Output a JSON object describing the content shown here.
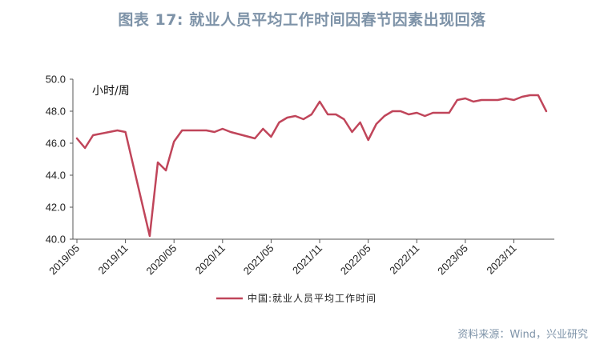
{
  "title": "图表 17: 就业人员平均工作时间因春节因素出现回落",
  "source": "资料来源：Wind，兴业研究",
  "chart_data": {
    "type": "line",
    "unit_label": "小时/周",
    "ylim": [
      40.0,
      50.0
    ],
    "yticks": [
      "40.0",
      "42.0",
      "44.0",
      "46.0",
      "48.0",
      "50.0"
    ],
    "xticks": [
      "2019/05",
      "2019/11",
      "2020/05",
      "2020/11",
      "2021/05",
      "2021/11",
      "2022/05",
      "2022/11",
      "2023/05",
      "2023/11"
    ],
    "legend": "中国:就业人员平均工作时间",
    "color": "#C0455A",
    "series": [
      {
        "name": "中国:就业人员平均工作时间",
        "points": [
          [
            "2019-05",
            46.3
          ],
          [
            "2019-06",
            45.7
          ],
          [
            "2019-07",
            46.5
          ],
          [
            "2019-08",
            46.6
          ],
          [
            "2019-09",
            46.7
          ],
          [
            "2019-10",
            46.8
          ],
          [
            "2019-11",
            46.7
          ],
          [
            "2020-02",
            40.2
          ],
          [
            "2020-03",
            44.8
          ],
          [
            "2020-04",
            44.3
          ],
          [
            "2020-05",
            46.1
          ],
          [
            "2020-06",
            46.8
          ],
          [
            "2020-07",
            46.8
          ],
          [
            "2020-08",
            46.8
          ],
          [
            "2020-09",
            46.8
          ],
          [
            "2020-10",
            46.7
          ],
          [
            "2020-11",
            46.9
          ],
          [
            "2020-12",
            46.7
          ],
          [
            "2021-03",
            46.3
          ],
          [
            "2021-04",
            46.9
          ],
          [
            "2021-05",
            46.4
          ],
          [
            "2021-06",
            47.3
          ],
          [
            "2021-07",
            47.6
          ],
          [
            "2021-08",
            47.7
          ],
          [
            "2021-09",
            47.5
          ],
          [
            "2021-10",
            47.8
          ],
          [
            "2021-11",
            48.6
          ],
          [
            "2021-12",
            47.8
          ],
          [
            "2022-01",
            47.8
          ],
          [
            "2022-02",
            47.5
          ],
          [
            "2022-03",
            46.7
          ],
          [
            "2022-04",
            47.3
          ],
          [
            "2022-05",
            46.2
          ],
          [
            "2022-06",
            47.2
          ],
          [
            "2022-07",
            47.7
          ],
          [
            "2022-08",
            48.0
          ],
          [
            "2022-09",
            48.0
          ],
          [
            "2022-10",
            47.8
          ],
          [
            "2022-11",
            47.9
          ],
          [
            "2022-12",
            47.7
          ],
          [
            "2023-01",
            47.9
          ],
          [
            "2023-02",
            47.9
          ],
          [
            "2023-03",
            47.9
          ],
          [
            "2023-04",
            48.7
          ],
          [
            "2023-05",
            48.8
          ],
          [
            "2023-06",
            48.6
          ],
          [
            "2023-07",
            48.7
          ],
          [
            "2023-08",
            48.7
          ],
          [
            "2023-09",
            48.7
          ],
          [
            "2023-10",
            48.8
          ],
          [
            "2023-11",
            48.7
          ],
          [
            "2023-12",
            48.9
          ],
          [
            "2024-01",
            49.0
          ],
          [
            "2024-02",
            49.0
          ],
          [
            "2024-03",
            48.0
          ]
        ]
      }
    ]
  }
}
